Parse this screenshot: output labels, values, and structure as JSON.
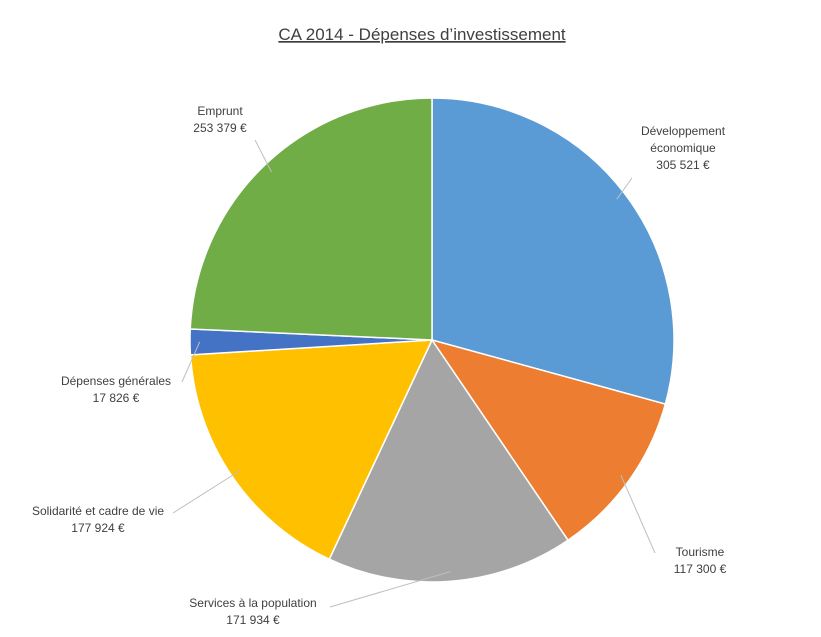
{
  "chart_data": {
    "type": "pie",
    "title": "CA 2014 - Dépenses d’investissement",
    "slices": [
      {
        "label": "Développement économique",
        "label_lines": [
          "Développement",
          "économique"
        ],
        "value_text": "305 521 €",
        "value": 305521,
        "color": "#5B9BD5"
      },
      {
        "label": "Tourisme",
        "label_lines": [
          "Tourisme"
        ],
        "value_text": "117 300 €",
        "value": 117300,
        "color": "#ED7D31"
      },
      {
        "label": "Services à la population",
        "label_lines": [
          "Services à la population"
        ],
        "value_text": "171 934 €",
        "value": 171934,
        "color": "#A5A5A5"
      },
      {
        "label": "Solidarité et cadre de vie",
        "label_lines": [
          "Solidarité et cadre de vie"
        ],
        "value_text": "177 924 €",
        "value": 177924,
        "color": "#FFC000"
      },
      {
        "label": "Dépenses générales",
        "label_lines": [
          "Dépenses générales"
        ],
        "value_text": "17 826 €",
        "value": 17826,
        "color": "#4472C4"
      },
      {
        "label": "Emprunt",
        "label_lines": [
          "Emprunt"
        ],
        "value_text": "253 379 €",
        "value": 253379,
        "color": "#70AD47"
      }
    ],
    "legend": "none",
    "start_angle_deg": 0,
    "direction": "clockwise"
  }
}
